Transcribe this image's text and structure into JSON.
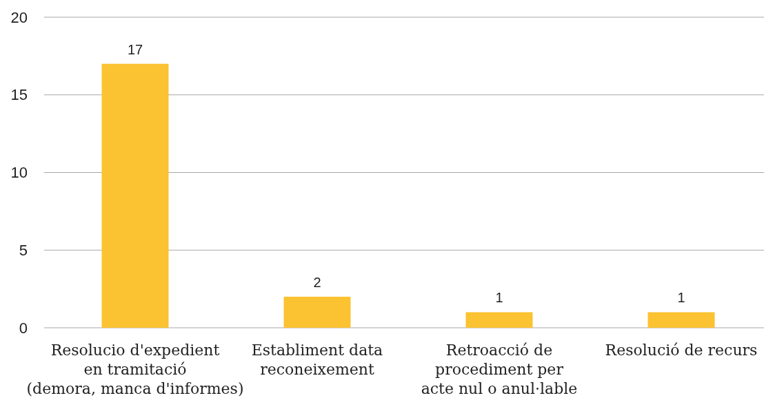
{
  "chart_data": {
    "type": "bar",
    "categories": [
      "Resolucio d'expedient\nen tramitació\n(demora, manca d'informes)",
      "Establiment data\nreconeixement",
      "Retroacció de\nprocediment per\nacte nul o anul·lable",
      "Resolució de recurs"
    ],
    "values": [
      17,
      2,
      1,
      1
    ],
    "color": "#fbc232",
    "ylim": [
      0,
      20
    ],
    "yticks": [
      0,
      5,
      10,
      15,
      20
    ],
    "grid": "y",
    "data_labels": true
  }
}
